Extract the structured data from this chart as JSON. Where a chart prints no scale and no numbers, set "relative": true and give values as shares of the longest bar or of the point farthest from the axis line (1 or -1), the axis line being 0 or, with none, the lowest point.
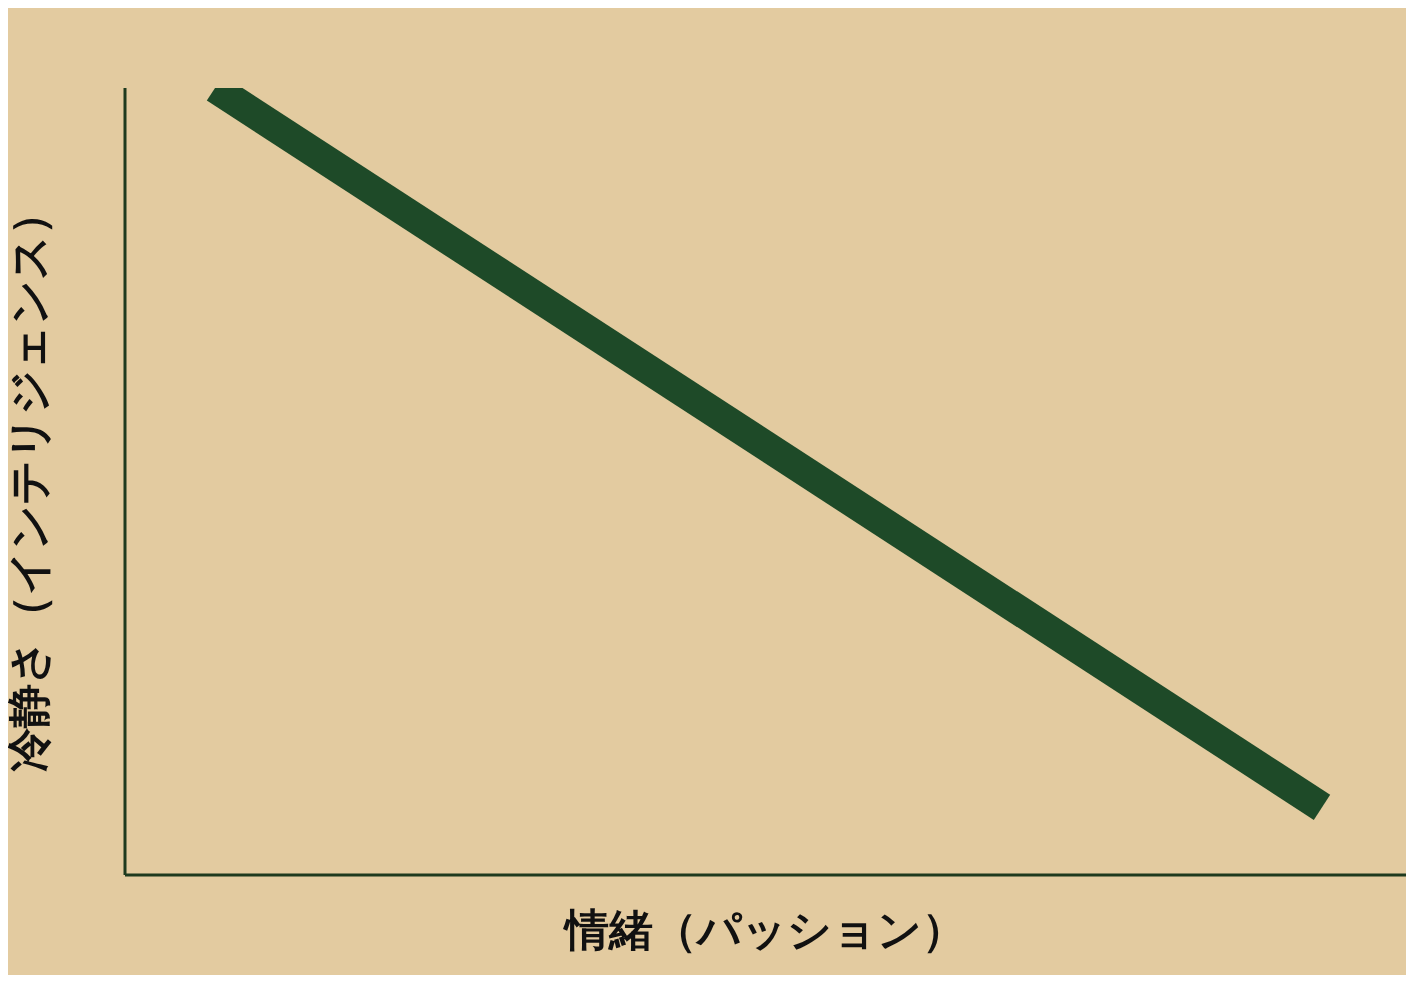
{
  "chart_data": {
    "type": "line",
    "relative": true,
    "xlabel": "情緒（パッション）",
    "ylabel": "冷静さ（インテリジェンス）",
    "categories": [
      null,
      null
    ],
    "marker": "none",
    "series": [
      {
        "color": "#1e4a28",
        "values": [
          1,
          0.086
        ]
      }
    ]
  }
}
